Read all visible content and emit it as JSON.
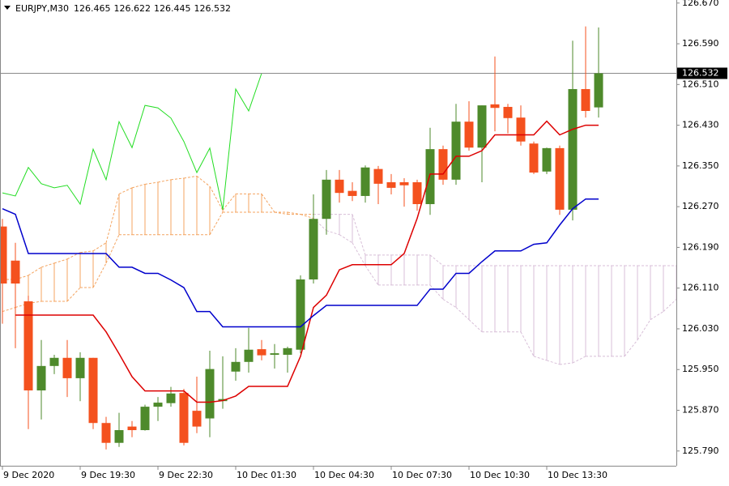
{
  "chart_data": {
    "type": "candlestick",
    "symbol": "EURJPY,M30",
    "header_values": [
      126.465,
      126.622,
      126.445,
      126.532
    ],
    "last_price": 126.532,
    "ylim": [
      125.761,
      126.676
    ],
    "yticks": [
      {
        "value": 126.67,
        "label": "126.670"
      },
      {
        "value": 126.59,
        "label": "126.590"
      },
      {
        "value": 126.51,
        "label": "126.510"
      },
      {
        "value": 126.43,
        "label": "126.430"
      },
      {
        "value": 126.35,
        "label": "126.350"
      },
      {
        "value": 126.27,
        "label": "126.270"
      },
      {
        "value": 126.19,
        "label": "126.190"
      },
      {
        "value": 126.11,
        "label": "126.110"
      },
      {
        "value": 126.03,
        "label": "126.030"
      },
      {
        "value": 125.95,
        "label": "125.950"
      },
      {
        "value": 125.87,
        "label": "125.870"
      },
      {
        "value": 125.79,
        "label": "125.790"
      }
    ],
    "categories": [
      "9 Dec 2020",
      null,
      null,
      null,
      null,
      null,
      "9 Dec 19:30",
      null,
      null,
      null,
      null,
      null,
      "9 Dec 22:30",
      null,
      null,
      null,
      null,
      null,
      "10 Dec 01:30",
      null,
      null,
      null,
      null,
      null,
      "10 Dec 04:30",
      null,
      null,
      null,
      null,
      null,
      "10 Dec 07:30",
      null,
      null,
      null,
      null,
      null,
      "10 Dec 10:30",
      null,
      null,
      null,
      null,
      null,
      "10 Dec 13:30",
      null,
      null,
      null,
      null,
      null,
      null,
      null,
      null,
      null,
      null
    ],
    "bull_color": "#4e8a2b",
    "bear_color": "#f4511e",
    "open": [
      126.231,
      126.164,
      126.084,
      125.909,
      125.957,
      125.973,
      125.933,
      125.973,
      125.845,
      125.806,
      125.838,
      125.831,
      125.877,
      125.884,
      125.904,
      125.869,
      125.854,
      125.888,
      125.946,
      125.965,
      125.99,
      125.979,
      125.979,
      125.989,
      126.127,
      126.246,
      126.323,
      126.301,
      126.291,
      126.344,
      126.318,
      126.318,
      126.318,
      126.275,
      126.383,
      126.323,
      126.437,
      126.386,
      126.471,
      126.466,
      126.445,
      126.394,
      126.339,
      126.385,
      126.264,
      126.501,
      126.465,
      null,
      null,
      null,
      null,
      null,
      null
    ],
    "high": [
      126.246,
      126.199,
      126.095,
      126.008,
      125.979,
      126.008,
      125.984,
      125.973,
      125.857,
      125.865,
      125.849,
      125.881,
      125.896,
      125.916,
      125.912,
      125.936,
      125.987,
      125.976,
      125.992,
      126.032,
      126.008,
      126.0,
      125.995,
      126.135,
      126.294,
      126.342,
      126.342,
      126.318,
      126.351,
      126.35,
      126.334,
      126.326,
      126.323,
      126.425,
      126.39,
      126.472,
      126.477,
      126.469,
      126.565,
      126.472,
      126.469,
      126.398,
      126.386,
      126.39,
      126.596,
      126.624,
      126.622,
      null,
      null,
      null,
      null,
      null,
      null
    ],
    "low": [
      126.04,
      125.992,
      125.833,
      125.852,
      125.941,
      125.896,
      125.888,
      125.833,
      125.793,
      125.798,
      125.817,
      125.83,
      125.849,
      125.877,
      125.801,
      125.825,
      125.817,
      125.873,
      125.928,
      125.944,
      125.968,
      125.952,
      125.944,
      125.982,
      126.119,
      126.215,
      126.278,
      126.281,
      126.278,
      126.275,
      126.294,
      126.27,
      126.262,
      126.254,
      126.313,
      126.313,
      126.38,
      126.318,
      126.418,
      126.414,
      126.39,
      126.334,
      126.334,
      126.254,
      126.243,
      126.445,
      126.445,
      null,
      null,
      null,
      null,
      null,
      null
    ],
    "close": [
      126.119,
      126.119,
      125.909,
      125.957,
      125.973,
      125.933,
      125.973,
      125.845,
      125.806,
      125.831,
      125.831,
      125.877,
      125.885,
      125.903,
      125.806,
      125.838,
      125.951,
      125.892,
      125.965,
      125.989,
      125.978,
      125.982,
      125.992,
      126.127,
      126.246,
      126.323,
      126.297,
      126.291,
      126.347,
      126.315,
      126.307,
      126.312,
      126.275,
      126.383,
      126.323,
      126.437,
      126.386,
      126.469,
      126.464,
      126.444,
      126.398,
      126.337,
      126.385,
      126.264,
      126.501,
      126.458,
      126.532,
      null,
      null,
      null,
      null,
      null,
      null
    ],
    "tenkan": {
      "color": "#dd0000",
      "values": [
        null,
        126.057,
        126.057,
        126.057,
        126.057,
        126.057,
        126.057,
        126.057,
        126.024,
        125.981,
        125.936,
        125.908,
        125.908,
        125.908,
        125.908,
        125.886,
        125.886,
        125.889,
        125.898,
        125.917,
        125.917,
        125.917,
        125.917,
        125.976,
        126.072,
        126.096,
        126.146,
        126.156,
        126.156,
        126.156,
        126.156,
        126.178,
        126.247,
        126.334,
        126.334,
        126.369,
        126.369,
        126.38,
        126.411,
        126.411,
        126.411,
        126.411,
        126.438,
        126.411,
        126.422,
        126.43,
        126.43,
        null,
        null,
        null,
        null,
        null,
        null
      ]
    },
    "kijun": {
      "color": "#0000cc",
      "values": [
        126.266,
        126.255,
        126.178,
        126.178,
        126.178,
        126.178,
        126.178,
        126.178,
        126.178,
        126.151,
        126.151,
        126.139,
        126.139,
        126.126,
        126.111,
        126.064,
        126.064,
        126.034,
        126.034,
        126.034,
        126.034,
        126.034,
        126.034,
        126.034,
        126.056,
        126.076,
        126.076,
        126.076,
        126.076,
        126.076,
        126.076,
        126.076,
        126.076,
        126.108,
        126.108,
        126.139,
        126.139,
        126.162,
        126.183,
        126.183,
        126.183,
        126.196,
        126.199,
        126.234,
        126.266,
        126.285,
        126.285,
        null,
        null,
        null,
        null,
        null,
        null
      ]
    },
    "chikou": {
      "color": "#22dd22",
      "values": [
        126.297,
        126.291,
        126.347,
        126.315,
        126.307,
        126.312,
        126.275,
        126.383,
        126.323,
        126.437,
        126.386,
        126.469,
        126.464,
        126.444,
        126.398,
        126.337,
        126.385,
        126.264,
        126.501,
        126.458,
        126.532,
        null,
        null,
        null,
        null,
        null,
        null,
        null,
        null,
        null,
        null,
        null,
        null,
        null,
        null,
        null,
        null,
        null,
        null,
        null,
        null,
        null,
        null,
        null,
        null,
        null,
        null,
        null,
        null,
        null,
        null,
        null,
        null
      ]
    },
    "span_a": {
      "color": "#f4a460",
      "values": [
        126.127,
        126.127,
        126.135,
        126.151,
        126.159,
        126.167,
        126.18,
        126.183,
        126.199,
        126.295,
        126.307,
        126.314,
        126.318,
        126.323,
        126.326,
        126.33,
        126.31,
        126.263,
        126.295,
        126.295,
        126.295,
        126.259,
        126.259,
        126.255,
        126.247,
        126.223,
        126.215,
        126.199,
        126.154,
        126.116,
        126.116,
        126.116,
        126.116,
        126.116,
        126.088,
        126.072,
        126.048,
        126.024,
        126.024,
        126.024,
        126.024,
        125.976,
        125.968,
        125.96,
        125.963,
        125.976,
        125.976,
        125.976,
        125.976,
        126.008,
        126.048,
        126.064,
        126.088
      ]
    },
    "span_b": {
      "color": "#d8bfd8",
      "values": [
        126.064,
        126.072,
        126.08,
        126.084,
        126.084,
        126.084,
        126.111,
        126.111,
        126.159,
        126.215,
        126.215,
        126.215,
        126.215,
        126.215,
        126.215,
        126.215,
        126.215,
        126.259,
        126.259,
        126.259,
        126.259,
        126.259,
        126.255,
        126.255,
        126.255,
        126.255,
        126.255,
        126.255,
        126.175,
        126.175,
        126.175,
        126.175,
        126.175,
        126.175,
        126.154,
        126.154,
        126.154,
        126.154,
        126.154,
        126.154,
        126.154,
        126.154,
        126.154,
        126.154,
        126.154,
        126.154,
        126.154,
        126.154,
        126.154,
        126.154,
        126.154,
        126.154,
        126.154
      ]
    }
  }
}
